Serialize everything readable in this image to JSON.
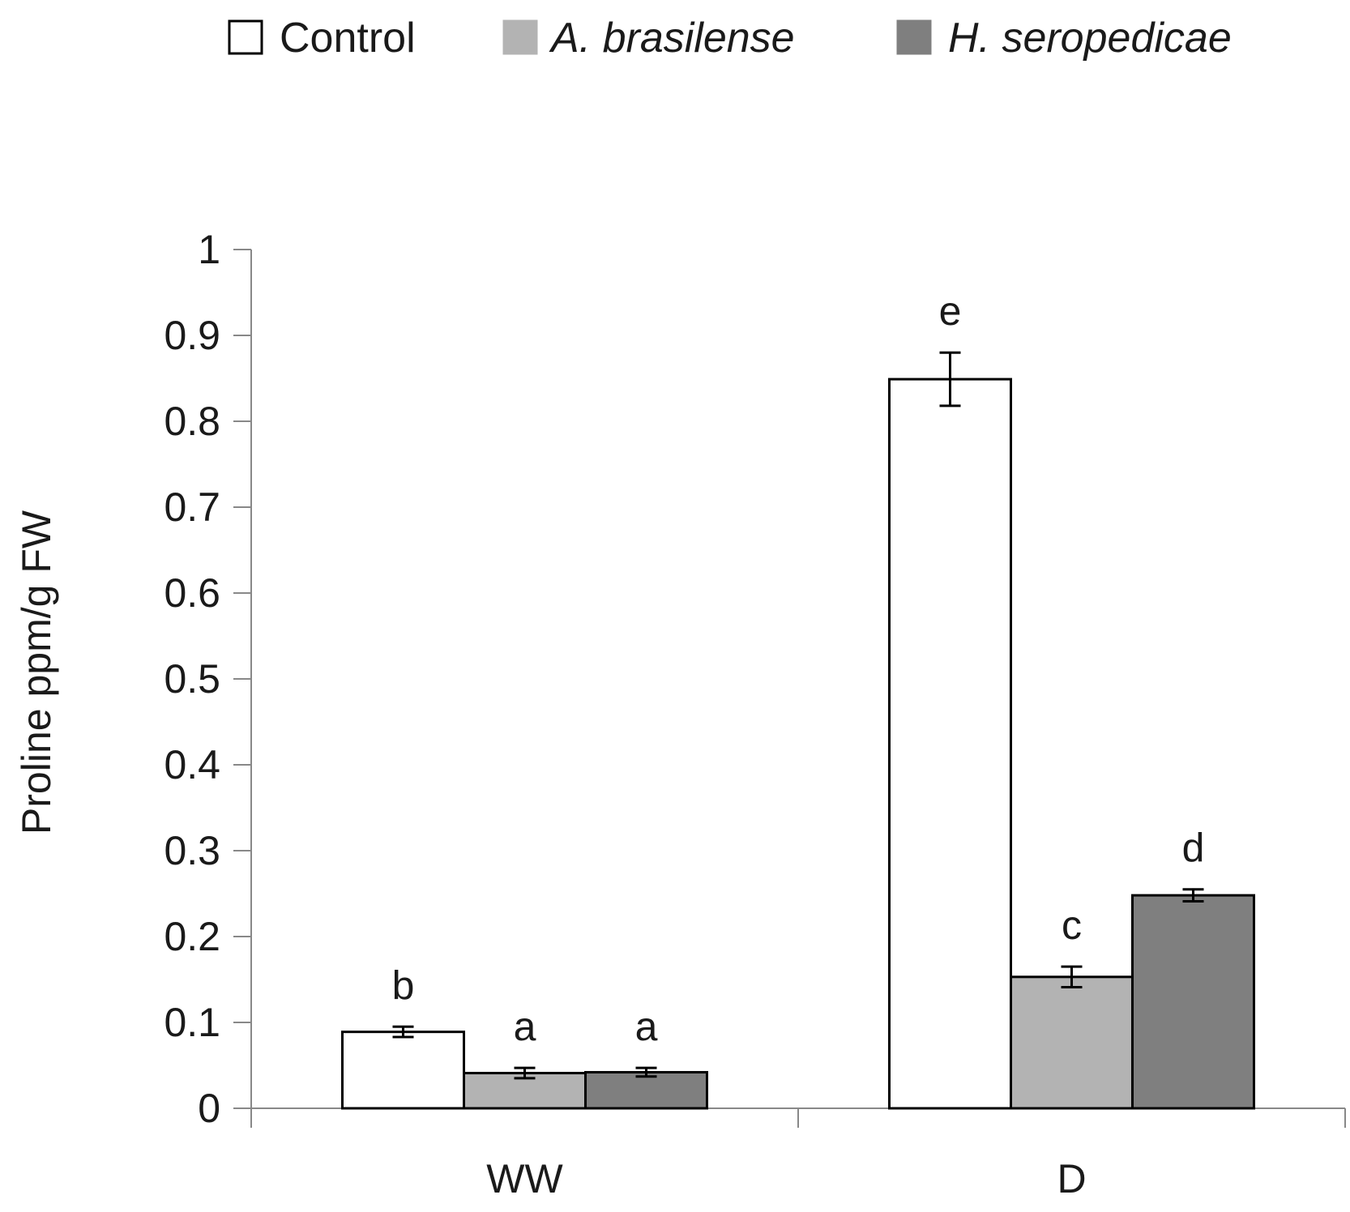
{
  "chart_data": {
    "type": "bar",
    "title": "",
    "xlabel": "",
    "ylabel": "Proline ppm/g FW",
    "ylim": [
      0,
      1
    ],
    "yticks": [
      0,
      0.1,
      0.2,
      0.3,
      0.4,
      0.5,
      0.6,
      0.7,
      0.8,
      0.9,
      1
    ],
    "ytick_labels": [
      "0",
      "0.1",
      "0.2",
      "0.3",
      "0.4",
      "0.5",
      "0.6",
      "0.7",
      "0.8",
      "0.9",
      "1"
    ],
    "grid": false,
    "legend_position": "top",
    "categories": [
      "WW",
      "D"
    ],
    "series": [
      {
        "name": "Control",
        "italic": false,
        "color": "#ffffff",
        "values": [
          0.089,
          0.849
        ],
        "errors": [
          0.006,
          0.031
        ],
        "labels": [
          "b",
          "e"
        ]
      },
      {
        "name": "A. brasilense",
        "italic": true,
        "color": "#b3b3b3",
        "values": [
          0.041,
          0.153
        ],
        "errors": [
          0.006,
          0.012
        ],
        "labels": [
          "a",
          "c"
        ]
      },
      {
        "name": "H. seropedicae",
        "italic": true,
        "color": "#7f7f7f",
        "values": [
          0.042,
          0.248
        ],
        "errors": [
          0.005,
          0.007
        ],
        "labels": [
          "a",
          "d"
        ]
      }
    ]
  }
}
